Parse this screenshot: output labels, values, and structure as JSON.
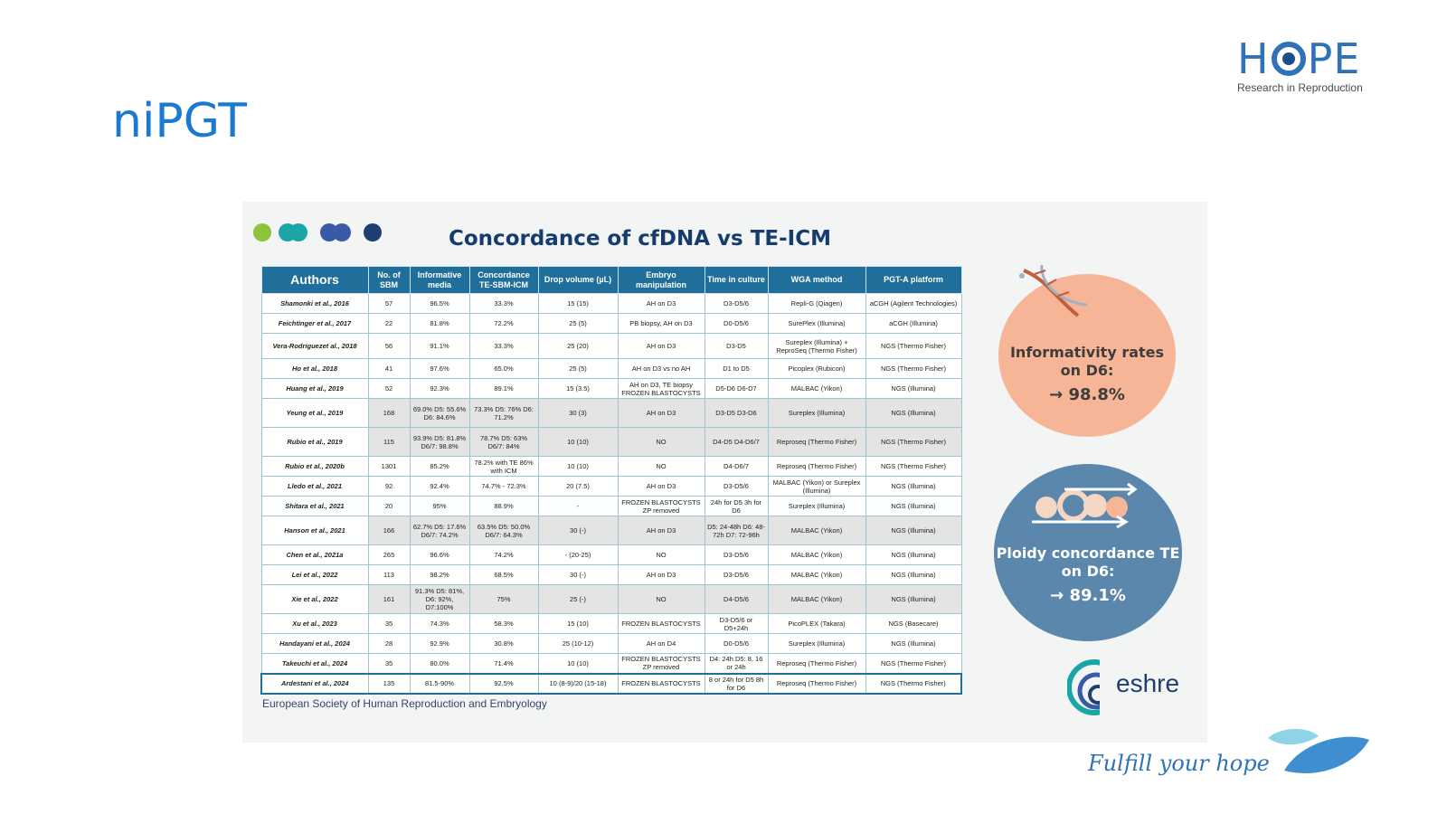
{
  "page_title": "niPGT",
  "brand": {
    "name": "HOPE",
    "name_left": "H",
    "name_right": "PE",
    "subtitle": "Research in Reproduction",
    "tagline": "Fulfill your hope"
  },
  "slide": {
    "title": "Concordance of cfDNA vs TE-ICM",
    "footer": "European Society of Human Reproduction and Embryology",
    "eshre_logo_text": "eshre",
    "accent_colors": [
      "#8cc43c",
      "#1aa6a6",
      "#3a5aa8",
      "#1e3f70"
    ]
  },
  "table": {
    "headers": [
      "Authors",
      "No. of SBM",
      "Informative media",
      "Concordance TE-SBM-ICM",
      "Drop volume (µL)",
      "Embryo manipulation",
      "Time in culture",
      "WGA method",
      "PGT-A platform"
    ],
    "rows": [
      [
        "Shamonki et al., 2016",
        "57",
        "96.5%",
        "33.3%",
        "15 (15)",
        "AH on D3",
        "D3-D5/6",
        "Repli-G (Qiagen)",
        "aCGH (Agilent Technologies)"
      ],
      [
        "Feichtinger et al., 2017",
        "22",
        "81.8%",
        "72.2%",
        "25 (5)",
        "PB biopsy, AH on D3",
        "D0-D5/6",
        "SurePlex (Illumina)",
        "aCGH (Illumina)"
      ],
      [
        "Vera-Rodriguezet al., 2018",
        "56",
        "91.1%",
        "33.3%",
        "25 (20)",
        "AH on D3",
        "D3-D5",
        "Sureplex (Illumina) + ReproSeq (Thermo Fisher)",
        "NGS (Thermo Fisher)"
      ],
      [
        "Ho et al., 2018",
        "41",
        "97.6%",
        "65.0%",
        "25 (5)",
        "AH on D3 vs no AH",
        "D1 to D5",
        "Picoplex (Rubicon)",
        "NGS (Thermo Fisher)"
      ],
      [
        "Huang et al., 2019",
        "52",
        "92.3%",
        "89.1%",
        "15 (3.5)",
        "AH on D3, TE biopsy FROZEN BLASTOCYSTS",
        "D5-D6 D6-D7",
        "MALBAC (Yikon)",
        "NGS (Illumina)"
      ],
      [
        "Yeung et al., 2019",
        "168",
        "69.0% D5: 55.6% D6: 84.6%",
        "73.3% D5: 76% D6: 71.2%",
        "30 (3)",
        "AH on D3",
        "D3-D5 D3-D6",
        "Sureplex (Illumina)",
        "NGS (Illumina)"
      ],
      [
        "Rubio et al., 2019",
        "115",
        "93.9% D5: 81.8% D6/7: 98.8%",
        "78.7% D5: 63% D6/7: 84%",
        "10 (10)",
        "NO",
        "D4-D5 D4-D6/7",
        "Reproseq (Thermo Fisher)",
        "NGS (Thermo Fisher)"
      ],
      [
        "Rubio et al., 2020b",
        "1301",
        "85.2%",
        "78.2% with TE 86% with ICM",
        "10 (10)",
        "NO",
        "D4-D6/7",
        "Reproseq (Thermo Fisher)",
        "NGS (Thermo Fisher)"
      ],
      [
        "Lledo et al., 2021",
        "92",
        "92.4%",
        "74.7% - 72.3%",
        "20 (7.5)",
        "AH on D3",
        "D3-D5/6",
        "MALBAC (Yikon) or Sureplex (Illumina)",
        "NGS (Illumina)"
      ],
      [
        "Shitara et al., 2021",
        "20",
        "95%",
        "88.9%",
        "-",
        "FROZEN BLASTOCYSTS ZP removed",
        "24h for D5 3h for D6",
        "Sureplex (Illumina)",
        "NGS (Illumina)"
      ],
      [
        "Hanson et al., 2021",
        "166",
        "62.7% D5: 17.6% D6/7: 74.2%",
        "63.5% D5: 50.0% D6/7: 64.3%",
        "30 (-)",
        "AH on D3",
        "D5: 24-48h D6: 48-72h D7: 72-96h",
        "MALBAC (Yikon)",
        "NGS (Illumina)"
      ],
      [
        "Chen et al., 2021a",
        "265",
        "96.6%",
        "74.2%",
        "- (20-25)",
        "NO",
        "D3-D5/6",
        "MALBAC (Yikon)",
        "NGS (Illumina)"
      ],
      [
        "Lei et al., 2022",
        "113",
        "98.2%",
        "68.5%",
        "30 (-)",
        "AH on D3",
        "D3-D5/6",
        "MALBAC (Yikon)",
        "NGS (Illumina)"
      ],
      [
        "Xie et al., 2022",
        "161",
        "91.3% D5: 81%, D6: 92%, D7:100%",
        "75%",
        "25 (-)",
        "NO",
        "D4-D5/6",
        "MALBAC (Yikon)",
        "NGS (Illumina)"
      ],
      [
        "Xu et al., 2023",
        "35",
        "74.3%",
        "58.3%",
        "15 (10)",
        "FROZEN BLASTOCYSTS",
        "D3-D5/6 or D5+24h",
        "PicoPLEX (Takara)",
        "NGS (Basecare)"
      ],
      [
        "Handayani et al., 2024",
        "28",
        "92.9%",
        "30.8%",
        "25 (10-12)",
        "AH on D4",
        "D0-D5/6",
        "Sureplex (Illumina)",
        "NGS (Illumina)"
      ],
      [
        "Takeuchi et al., 2024",
        "35",
        "80.0%",
        "71.4%",
        "10 (10)",
        "FROZEN BLASTOCYSTS ZP removed",
        "D4: 24h D5: 8, 16 or 24h",
        "Reproseq (Thermo Fisher)",
        "NGS (Thermo Fisher)"
      ],
      [
        "Ardestani et al., 2024",
        "135",
        "81.5-90%",
        "92.5%",
        "10 (8-9)/20 (15-18)",
        "FROZEN BLASTOCYSTS",
        "8 or 24h for D5 8h for D6",
        "Reproseq (Thermo Fisher)",
        "NGS (Thermo Fisher)"
      ]
    ]
  },
  "stats": {
    "informativity": {
      "label": "Informativity rates on D6:",
      "value": "→ 98.8%",
      "color": "#f7b597"
    },
    "ploidy": {
      "label": "Ploidy concordance TE on D6:",
      "value": "→ 89.1%",
      "color": "#5b87ac"
    }
  }
}
